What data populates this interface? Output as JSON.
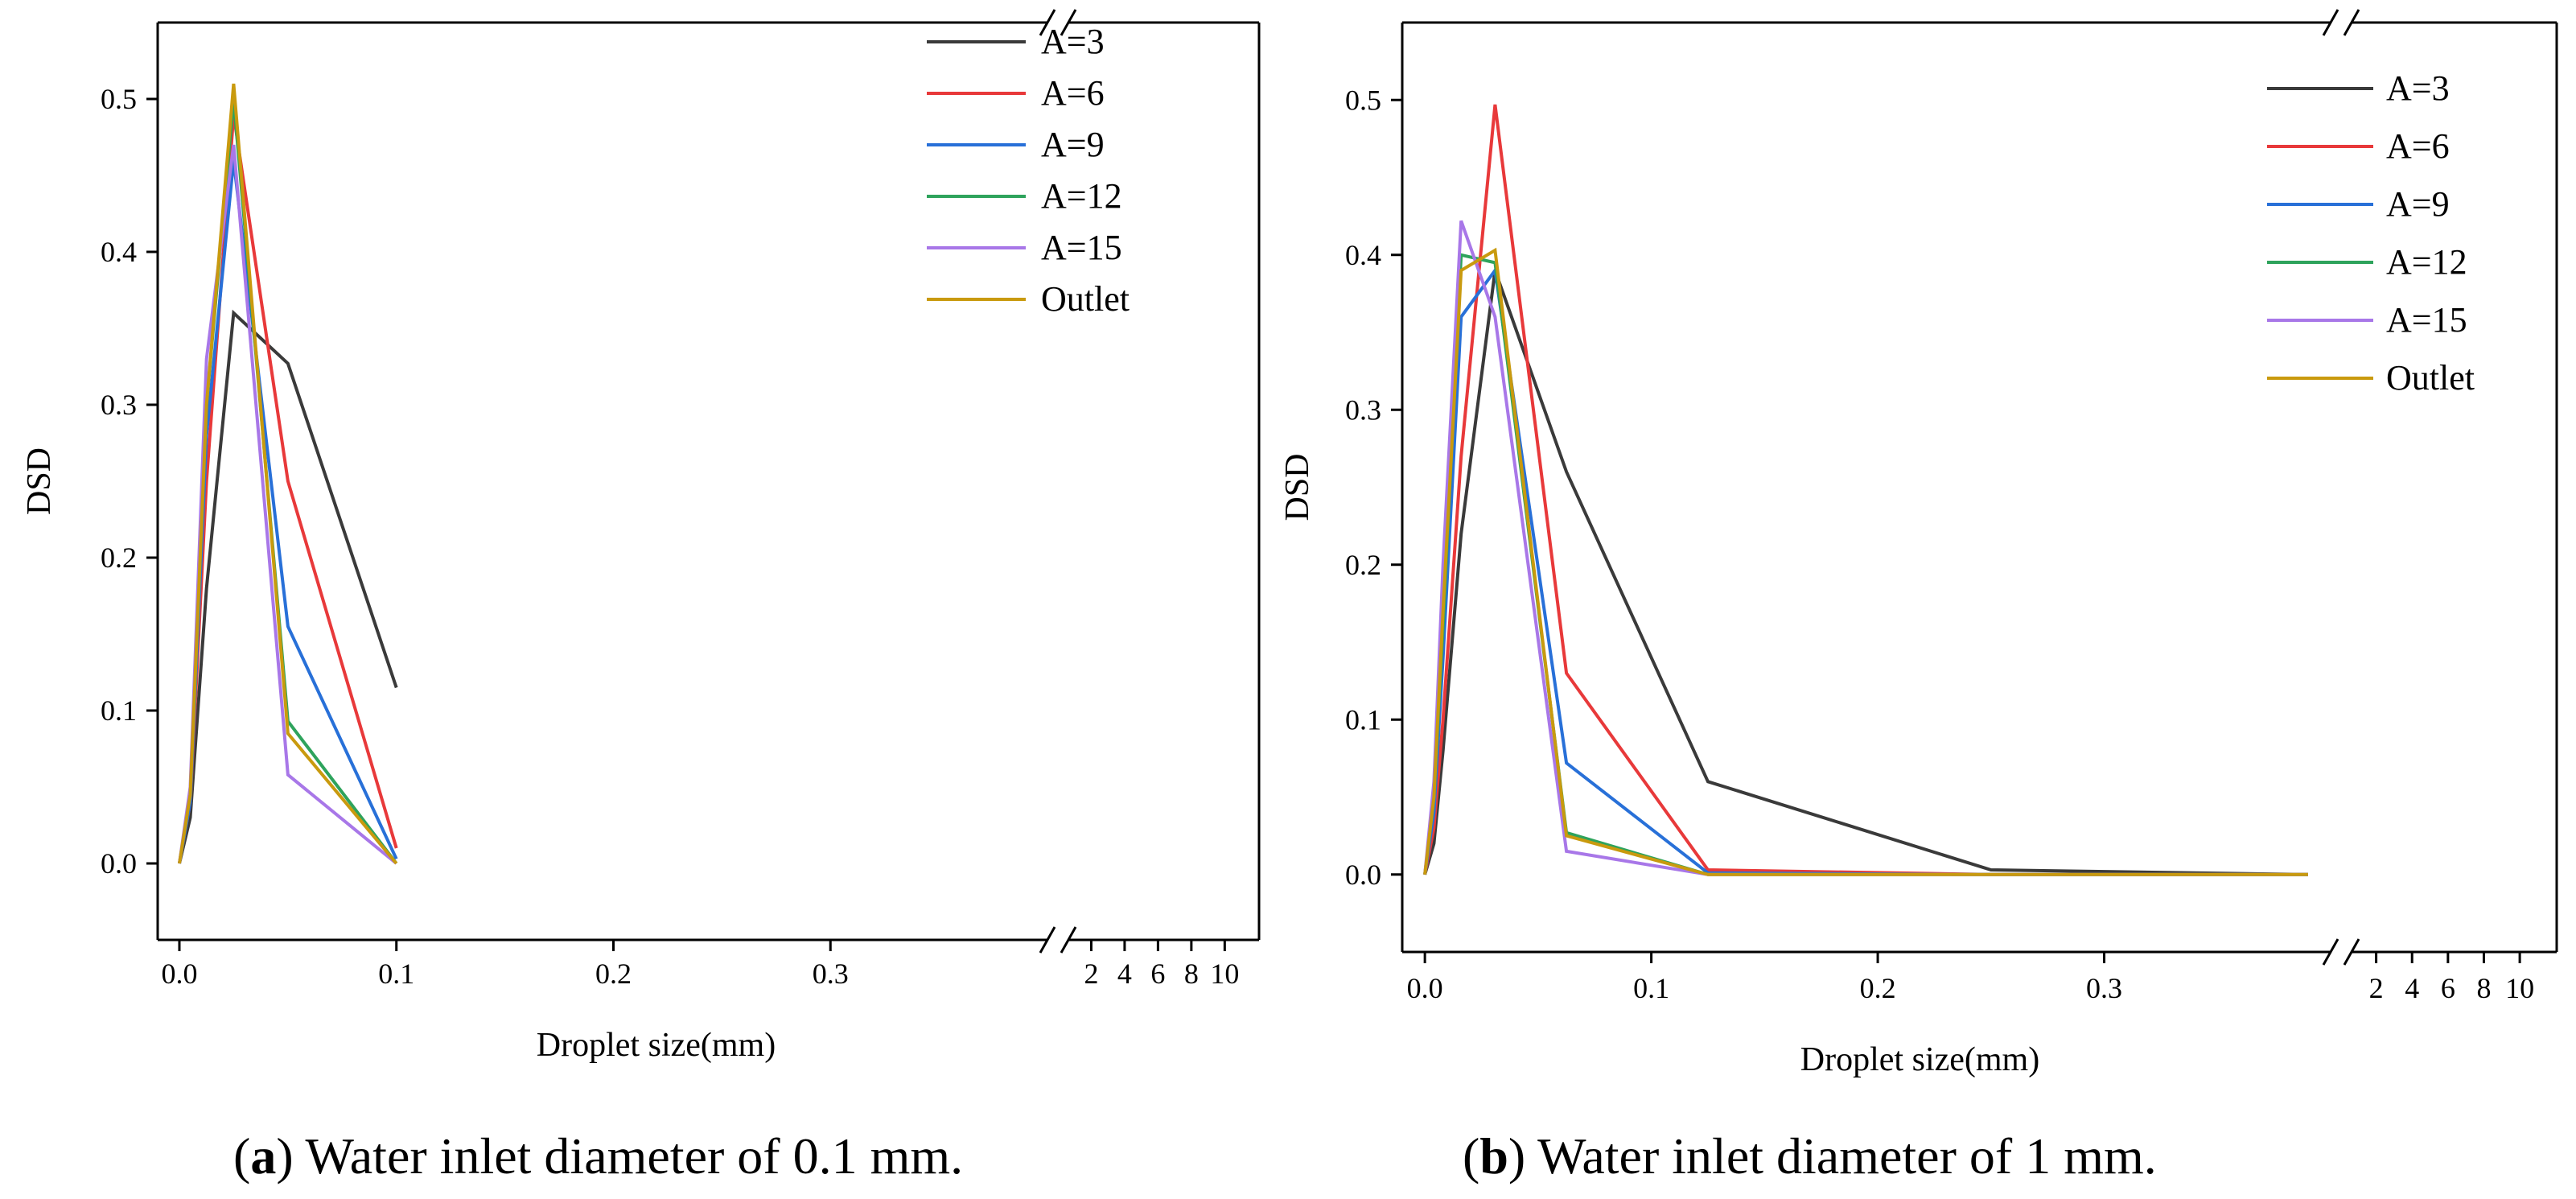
{
  "colors": {
    "A=3": "#3a3a3a",
    "A=6": "#e8393a",
    "A=9": "#2870d8",
    "A=12": "#2ea35c",
    "A=15": "#a877e8",
    "Outlet": "#c99a0e"
  },
  "chart_data": [
    {
      "type": "line",
      "panel_letter": "a",
      "caption": " Water inlet diameter of 0.1 mm.",
      "xlabel": "Droplet size(mm)",
      "ylabel": "DSD",
      "ylim": [
        -0.05,
        0.55
      ],
      "xlim_main": [
        -0.01,
        0.4
      ],
      "y_ticks": [
        "0.0",
        "0.1",
        "0.2",
        "0.3",
        "0.4",
        "0.5"
      ],
      "x_ticks_main": [
        "0.0",
        "0.1",
        "0.2",
        "0.3"
      ],
      "x_ticks_break": [
        "2",
        "4",
        "6",
        "8",
        "10"
      ],
      "axis_break": true,
      "legend_position": "top-right",
      "series": [
        {
          "name": "A=3",
          "x": [
            0,
            0.005,
            0.0125,
            0.025,
            0.05,
            0.1
          ],
          "y": [
            0,
            0.03,
            0.18,
            0.36,
            0.327,
            0.115
          ]
        },
        {
          "name": "A=6",
          "x": [
            0,
            0.005,
            0.0125,
            0.025,
            0.05,
            0.1
          ],
          "y": [
            0,
            0.04,
            0.25,
            0.49,
            0.25,
            0.01
          ]
        },
        {
          "name": "A=9",
          "x": [
            0,
            0.005,
            0.0125,
            0.025,
            0.05,
            0.1
          ],
          "y": [
            0,
            0.04,
            0.28,
            0.46,
            0.155,
            0.003
          ]
        },
        {
          "name": "A=12",
          "x": [
            0,
            0.005,
            0.0125,
            0.025,
            0.05,
            0.1
          ],
          "y": [
            0,
            0.045,
            0.3,
            0.5,
            0.093,
            0.0
          ]
        },
        {
          "name": "A=15",
          "x": [
            0,
            0.005,
            0.0125,
            0.025,
            0.05,
            0.1
          ],
          "y": [
            0,
            0.05,
            0.33,
            0.47,
            0.058,
            0.0
          ]
        },
        {
          "name": "Outlet",
          "x": [
            0,
            0.005,
            0.0125,
            0.025,
            0.05,
            0.1
          ],
          "y": [
            0,
            0.045,
            0.3,
            0.51,
            0.085,
            0.0
          ]
        }
      ]
    },
    {
      "type": "line",
      "panel_letter": "b",
      "caption": " Water inlet diameter of 1 mm.",
      "xlabel": "Droplet size(mm)",
      "ylabel": "DSD",
      "ylim": [
        -0.05,
        0.55
      ],
      "xlim_main": [
        -0.01,
        0.4
      ],
      "y_ticks": [
        "0.0",
        "0.1",
        "0.2",
        "0.3",
        "0.4",
        "0.5"
      ],
      "x_ticks_main": [
        "0.0",
        "0.1",
        "0.2",
        "0.3"
      ],
      "x_ticks_break": [
        "2",
        "4",
        "6",
        "8",
        "10"
      ],
      "axis_break": true,
      "legend_position": "top-right",
      "series": [
        {
          "name": "A=3",
          "x": [
            0,
            0.004,
            0.008,
            0.016,
            0.031,
            0.0625,
            0.125,
            0.25,
            0.39
          ],
          "y": [
            0,
            0.02,
            0.08,
            0.22,
            0.39,
            0.26,
            0.06,
            0.003,
            0.0
          ]
        },
        {
          "name": "A=6",
          "x": [
            0,
            0.004,
            0.008,
            0.016,
            0.031,
            0.0625,
            0.125,
            0.25,
            0.39
          ],
          "y": [
            0,
            0.03,
            0.1,
            0.27,
            0.497,
            0.13,
            0.003,
            0.0,
            0.0
          ]
        },
        {
          "name": "A=9",
          "x": [
            0,
            0.004,
            0.008,
            0.016,
            0.031,
            0.0625,
            0.125,
            0.25,
            0.39
          ],
          "y": [
            0,
            0.04,
            0.14,
            0.36,
            0.39,
            0.072,
            0.001,
            0.0,
            0.0
          ]
        },
        {
          "name": "A=12",
          "x": [
            0,
            0.004,
            0.008,
            0.016,
            0.031,
            0.0625,
            0.125,
            0.25,
            0.39
          ],
          "y": [
            0,
            0.05,
            0.16,
            0.4,
            0.395,
            0.027,
            0.0,
            0.0,
            0.0
          ]
        },
        {
          "name": "A=15",
          "x": [
            0,
            0.004,
            0.008,
            0.016,
            0.031,
            0.0625,
            0.125,
            0.25,
            0.39
          ],
          "y": [
            0,
            0.06,
            0.2,
            0.422,
            0.36,
            0.015,
            0.0,
            0.0,
            0.0
          ]
        },
        {
          "name": "Outlet",
          "x": [
            0,
            0.004,
            0.008,
            0.016,
            0.031,
            0.0625,
            0.125,
            0.25,
            0.39
          ],
          "y": [
            0,
            0.05,
            0.17,
            0.39,
            0.403,
            0.025,
            0.0,
            0.0,
            0.0
          ]
        }
      ]
    }
  ]
}
